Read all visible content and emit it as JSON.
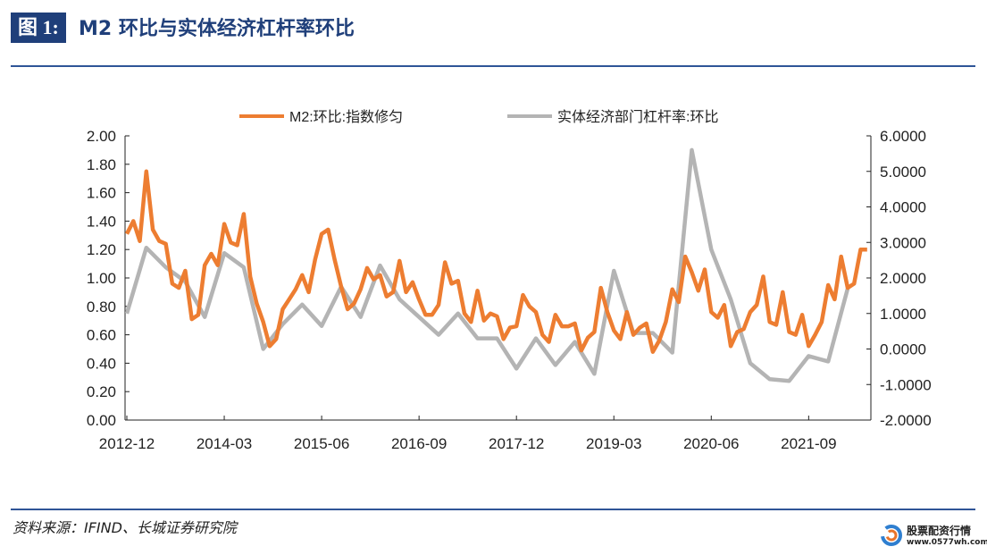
{
  "header": {
    "figure_label": "图 1:",
    "title": "M2 环比与实体经济杠杆率环比"
  },
  "footer": {
    "source": "资料来源：IFIND、长城证券研究院",
    "watermark_title": "股票配资行情",
    "watermark_url": "www.0577wh.com"
  },
  "colors": {
    "m2": "#ed7d31",
    "leverage": "#b4b4b4",
    "brand": "#1f3f7a"
  },
  "chart_data": {
    "type": "line",
    "legend_position": "top",
    "grid": false,
    "left_ylim": [
      0,
      2
    ],
    "right_ylim": [
      -2,
      6
    ],
    "left_ticks": [
      "0.00",
      "0.20",
      "0.40",
      "0.60",
      "0.80",
      "1.00",
      "1.20",
      "1.40",
      "1.60",
      "1.80",
      "2.00"
    ],
    "right_ticks": [
      "-2.0000",
      "-1.0000",
      "0.0000",
      "1.0000",
      "2.0000",
      "3.0000",
      "4.0000",
      "5.0000",
      "6.0000"
    ],
    "x_ticks": [
      "2012-12",
      "2014-03",
      "2015-06",
      "2016-09",
      "2017-12",
      "2019-03",
      "2020-06",
      "2021-09"
    ],
    "series": [
      {
        "name": "M2:环比:指数修匀",
        "axis": "left",
        "color": "#ed7d31",
        "x": [
          "2012-12",
          "2013-01",
          "2013-02",
          "2013-03",
          "2013-04",
          "2013-05",
          "2013-06",
          "2013-07",
          "2013-08",
          "2013-09",
          "2013-10",
          "2013-11",
          "2013-12",
          "2014-01",
          "2014-02",
          "2014-03",
          "2014-04",
          "2014-05",
          "2014-06",
          "2014-07",
          "2014-08",
          "2014-09",
          "2014-10",
          "2014-11",
          "2014-12",
          "2015-01",
          "2015-02",
          "2015-03",
          "2015-04",
          "2015-05",
          "2015-06",
          "2015-07",
          "2015-08",
          "2015-09",
          "2015-10",
          "2015-11",
          "2015-12",
          "2016-01",
          "2016-02",
          "2016-03",
          "2016-04",
          "2016-05",
          "2016-06",
          "2016-07",
          "2016-08",
          "2016-09",
          "2016-10",
          "2016-11",
          "2016-12",
          "2017-01",
          "2017-02",
          "2017-03",
          "2017-04",
          "2017-05",
          "2017-06",
          "2017-07",
          "2017-08",
          "2017-09",
          "2017-10",
          "2017-11",
          "2017-12",
          "2018-01",
          "2018-02",
          "2018-03",
          "2018-04",
          "2018-05",
          "2018-06",
          "2018-07",
          "2018-08",
          "2018-09",
          "2018-10",
          "2018-11",
          "2018-12",
          "2019-01",
          "2019-02",
          "2019-03",
          "2019-04",
          "2019-05",
          "2019-06",
          "2019-07",
          "2019-08",
          "2019-09",
          "2019-10",
          "2019-11",
          "2019-12",
          "2020-01",
          "2020-02",
          "2020-03",
          "2020-04",
          "2020-05",
          "2020-06",
          "2020-07",
          "2020-08",
          "2020-09",
          "2020-10",
          "2020-11",
          "2020-12",
          "2021-01",
          "2021-02",
          "2021-03",
          "2021-04",
          "2021-05",
          "2021-06",
          "2021-07",
          "2021-08",
          "2021-09",
          "2021-10",
          "2021-11",
          "2021-12",
          "2022-01",
          "2022-02",
          "2022-03",
          "2022-04",
          "2022-05",
          "2022-06"
        ],
        "values": [
          1.31,
          1.4,
          1.26,
          1.75,
          1.34,
          1.26,
          1.24,
          0.96,
          0.93,
          1.05,
          0.71,
          0.74,
          1.09,
          1.17,
          1.09,
          1.38,
          1.25,
          1.23,
          1.45,
          1.01,
          0.82,
          0.69,
          0.52,
          0.57,
          0.78,
          0.85,
          0.92,
          1.02,
          0.9,
          1.13,
          1.31,
          1.34,
          1.13,
          0.94,
          0.78,
          0.82,
          0.92,
          1.07,
          0.99,
          1.02,
          0.87,
          0.9,
          1.12,
          0.9,
          0.97,
          0.85,
          0.74,
          0.74,
          0.81,
          1.11,
          0.96,
          0.98,
          0.75,
          0.69,
          0.91,
          0.7,
          0.75,
          0.73,
          0.57,
          0.65,
          0.66,
          0.88,
          0.8,
          0.76,
          0.6,
          0.55,
          0.74,
          0.66,
          0.66,
          0.68,
          0.49,
          0.58,
          0.62,
          0.93,
          0.76,
          0.63,
          0.57,
          0.76,
          0.6,
          0.65,
          0.68,
          0.48,
          0.56,
          0.69,
          0.92,
          0.83,
          1.15,
          1.04,
          0.91,
          1.06,
          0.76,
          0.72,
          0.81,
          0.52,
          0.62,
          0.64,
          0.76,
          0.81,
          1.01,
          0.69,
          0.67,
          0.9,
          0.62,
          0.6,
          0.74,
          0.52,
          0.6,
          0.69,
          0.95,
          0.85,
          1.15,
          0.93,
          0.96,
          1.2,
          1.2
        ]
      },
      {
        "name": "实体经济部门杠杆率:环比",
        "axis": "right",
        "color": "#b4b4b4",
        "x": [
          "2012-12",
          "2013-03",
          "2013-06",
          "2013-09",
          "2013-12",
          "2014-03",
          "2014-06",
          "2014-09",
          "2014-12",
          "2015-03",
          "2015-06",
          "2015-09",
          "2015-12",
          "2016-03",
          "2016-06",
          "2016-09",
          "2016-12",
          "2017-03",
          "2017-06",
          "2017-09",
          "2017-12",
          "2018-03",
          "2018-06",
          "2018-09",
          "2018-12",
          "2019-03",
          "2019-06",
          "2019-09",
          "2019-12",
          "2020-03",
          "2020-06",
          "2020-09",
          "2020-12",
          "2021-03",
          "2021-06",
          "2021-09",
          "2021-12",
          "2022-03"
        ],
        "values": [
          1.0,
          2.85,
          2.3,
          1.9,
          0.9,
          2.7,
          2.3,
          0.0,
          0.7,
          1.25,
          0.65,
          1.75,
          0.9,
          2.35,
          1.4,
          0.9,
          0.4,
          1.0,
          0.3,
          0.3,
          -0.55,
          0.3,
          -0.45,
          0.2,
          -0.7,
          2.2,
          0.45,
          0.45,
          -0.1,
          5.6,
          2.8,
          1.4,
          -0.4,
          -0.85,
          -0.9,
          -0.2,
          -0.35,
          1.7
        ]
      }
    ]
  }
}
